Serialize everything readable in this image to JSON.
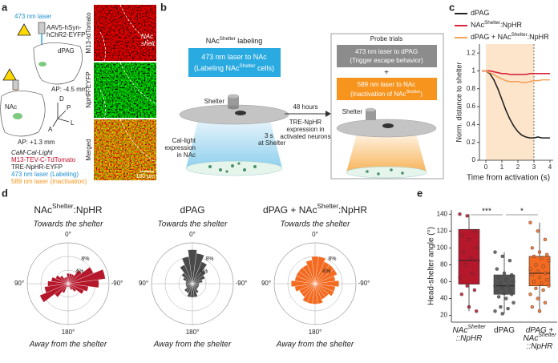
{
  "panel_labels": [
    "a",
    "b",
    "c",
    "d",
    "e"
  ],
  "panel_a": {
    "laser": "473 nm laser",
    "virus_lines": [
      "AAV5-hSyn-",
      "hChR2-EYFP"
    ],
    "target": "dPAG",
    "ap_posterior": "AP: -4.5 mm",
    "directions": [
      "D",
      "P",
      "L",
      "A"
    ],
    "nac": "NAc",
    "ap_anterior": "AP: +1.3 mm",
    "legend": [
      "CaM-Cal-Light",
      "M13-TEV-C-TdTomato",
      "TRE-NpHR-EYFP",
      "473 nm laser (Labeling)",
      "589 nm laser (Inactivation)"
    ],
    "image_labels": [
      "M13-tdTomato",
      "NpHR-EYFP",
      "Merged"
    ],
    "region_lines": [
      "NAc",
      "shell"
    ],
    "scale_bar": "100 μm"
  },
  "panel_b": {
    "title": [
      "NAc",
      "Shelter",
      " labeling"
    ],
    "label_box": [
      "473 nm laser to NAc"
    ],
    "label_box_sub": [
      "(Labeling NAc",
      "Shelter",
      " cells)"
    ],
    "shelter": "Shelter",
    "expression_lines": [
      "Cal-light",
      "expression",
      "in NAc"
    ],
    "timing_lines": [
      "3 s",
      "at Shelter"
    ],
    "delay": "48 hours",
    "tre_lines": [
      "TRE-NpHR",
      "expression in",
      "activated neurons"
    ],
    "probe_title": "Probe trials",
    "escape_lines": [
      "473 nm laser to dPAG",
      "(Trigger escape behavior)"
    ],
    "plus": "+",
    "inactivation_box": [
      "589 nm laser to NAc"
    ],
    "inactivation_sub": [
      "(Inactivation of NAc",
      "Shelter",
      ")"
    ],
    "probe_shelter": "Shelter"
  },
  "chart_data": [
    {
      "type": "line",
      "ylabel": "Norm. distance to shelter",
      "xlabel": "Time from activation (s)",
      "x": [
        -0.25,
        0,
        0.25,
        0.5,
        0.75,
        1,
        1.25,
        1.5,
        1.75,
        2,
        2.25,
        2.5,
        2.75,
        3,
        3.25,
        3.5,
        3.75,
        4
      ],
      "xlim": [
        -0.4,
        4.2
      ],
      "ylim": [
        0,
        1.3
      ],
      "xticks": [
        0,
        1,
        2,
        3,
        4
      ],
      "yticks": [
        0,
        0.2,
        0.4,
        0.6,
        0.8,
        1,
        1.2
      ],
      "highlight_x": [
        0,
        3
      ],
      "highlight_color": "#fde5cc",
      "series": [
        {
          "name": [
            "dPAG"
          ],
          "color": "#222222",
          "values": [
            1,
            1,
            0.97,
            0.9,
            0.8,
            0.68,
            0.56,
            0.46,
            0.38,
            0.32,
            0.28,
            0.26,
            0.25,
            0.25,
            0.26,
            0.25,
            0.25,
            0.25
          ]
        },
        {
          "name": [
            "NAc",
            "Shelter",
            ":NpHR"
          ],
          "color": "#d7263d",
          "values": [
            1,
            1,
            1,
            0.99,
            0.98,
            0.97,
            0.97,
            0.96,
            0.96,
            0.96,
            0.96,
            0.96,
            0.97,
            0.97,
            0.97,
            0.97,
            0.97,
            0.97
          ]
        },
        {
          "name": [
            "dPAG + NAc",
            "Shelter",
            ":NpHR"
          ],
          "color": "#f4a259",
          "values": [
            1,
            1,
            0.98,
            0.96,
            0.93,
            0.91,
            0.89,
            0.88,
            0.88,
            0.88,
            0.87,
            0.87,
            0.88,
            0.89,
            0.89,
            0.9,
            0.9,
            0.9
          ]
        }
      ]
    },
    {
      "type": "polar_bar",
      "title": [
        "NAc",
        "Shelter",
        ":NpHR"
      ],
      "top_label": "Towards the shelter",
      "bottom_label": "Away from the shelter",
      "color": "#b5172b",
      "angles": [
        0,
        15,
        30,
        45,
        60,
        75,
        90,
        105,
        120,
        135,
        150,
        165,
        180,
        195,
        210,
        225,
        240,
        255,
        270,
        285,
        300,
        315,
        330,
        345
      ],
      "bin_width": 15,
      "values": [
        3,
        2,
        2,
        3,
        4,
        5,
        6,
        7,
        9,
        5,
        3,
        1,
        1,
        1,
        2,
        3,
        5,
        6,
        9,
        11,
        8,
        5,
        3,
        3
      ],
      "rlim": [
        0,
        12
      ],
      "rticks": [
        {
          "value": 4,
          "label": "4%"
        },
        {
          "value": 8,
          "label": "8%"
        }
      ],
      "aticks": [
        {
          "value": 0,
          "label": "0°"
        },
        {
          "value": 90,
          "label": "90°"
        },
        {
          "value": -90,
          "label": "-90°"
        },
        {
          "value": 180,
          "label": "180°"
        }
      ]
    },
    {
      "type": "polar_bar",
      "title": [
        "dPAG"
      ],
      "top_label": "Towards the shelter",
      "bottom_label": "Away from the shelter",
      "color": "#4a4a4a",
      "angles": [
        0,
        15,
        30,
        45,
        60,
        75,
        90,
        105,
        120,
        135,
        150,
        165,
        180,
        195,
        210,
        225,
        240,
        255,
        270,
        285,
        300,
        315,
        330,
        345
      ],
      "bin_width": 15,
      "values": [
        10,
        8,
        6,
        4,
        3,
        2,
        2,
        2,
        2,
        3,
        3,
        4,
        4,
        4,
        3,
        2,
        2,
        2,
        2,
        3,
        4,
        5,
        7,
        9
      ],
      "rlim": [
        0,
        12
      ],
      "rticks": [
        {
          "value": 4,
          "label": "4%"
        },
        {
          "value": 8,
          "label": "8%"
        }
      ],
      "aticks": [
        {
          "value": 0,
          "label": "0°"
        },
        {
          "value": 90,
          "label": "90°"
        },
        {
          "value": -90,
          "label": "-90°"
        },
        {
          "value": 180,
          "label": "180°"
        }
      ]
    },
    {
      "type": "polar_bar",
      "title": [
        "dPAG + NAc",
        "Shelter",
        ":NpHR"
      ],
      "top_label": "Towards the shelter",
      "bottom_label": "Away from the shelter",
      "color": "#f36b21",
      "angles": [
        0,
        15,
        30,
        45,
        60,
        75,
        90,
        105,
        120,
        135,
        150,
        165,
        180,
        195,
        210,
        225,
        240,
        255,
        270,
        285,
        300,
        315,
        330,
        345
      ],
      "bin_width": 15,
      "values": [
        8,
        7,
        6,
        6,
        6,
        6,
        7,
        6,
        5,
        5,
        6,
        6,
        6,
        6,
        5,
        5,
        6,
        6,
        7,
        6,
        7,
        7,
        7,
        8
      ],
      "rlim": [
        0,
        12
      ],
      "rticks": [
        {
          "value": 4,
          "label": "4%"
        },
        {
          "value": 8,
          "label": "8%"
        }
      ],
      "aticks": [
        {
          "value": 0,
          "label": "0°"
        },
        {
          "value": 90,
          "label": "90°"
        },
        {
          "value": -90,
          "label": "-90°"
        },
        {
          "value": 180,
          "label": "180°"
        }
      ]
    },
    {
      "type": "box",
      "ylabel": "Head-shelter angle (°)",
      "categories": [
        [
          [
            "NAc",
            "Shelter"
          ],
          [
            "::NpHR"
          ]
        ],
        [
          [
            "dPAG"
          ]
        ],
        [
          [
            "dPAG +"
          ],
          [
            "NAc",
            "Shelter"
          ],
          [
            "::NpHR"
          ]
        ]
      ],
      "ylim": [
        12,
        145
      ],
      "yticks": [
        20,
        40,
        60,
        80,
        100,
        120,
        140
      ],
      "boxes": [
        {
          "color": "#b5172b",
          "min": 25,
          "q1": 57,
          "median": 85,
          "q3": 122,
          "max": 140,
          "points": [
            140,
            138,
            120,
            115,
            110,
            100,
            95,
            88,
            85,
            80,
            70,
            65,
            55,
            50,
            45,
            30,
            25
          ]
        },
        {
          "color": "#555555",
          "min": 22,
          "q1": 45,
          "median": 55,
          "q3": 68,
          "max": 95,
          "points": [
            95,
            90,
            85,
            75,
            70,
            68,
            65,
            62,
            60,
            58,
            55,
            55,
            52,
            50,
            48,
            46,
            45,
            42,
            40,
            35,
            30,
            28,
            25,
            22
          ]
        },
        {
          "color": "#f36b21",
          "min": 25,
          "q1": 55,
          "median": 70,
          "q3": 90,
          "max": 130,
          "points": [
            130,
            120,
            110,
            100,
            95,
            92,
            90,
            88,
            85,
            80,
            78,
            75,
            72,
            70,
            68,
            65,
            62,
            60,
            58,
            55,
            52,
            50,
            45,
            40,
            35,
            30,
            25
          ]
        }
      ],
      "annotations": [
        {
          "text": "***",
          "between": [
            0,
            1
          ]
        },
        {
          "text": "*",
          "between": [
            1,
            2
          ]
        }
      ]
    }
  ]
}
